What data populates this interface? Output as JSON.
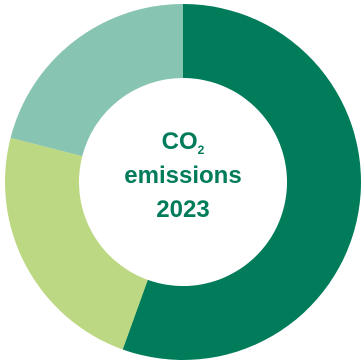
{
  "chart_data": {
    "type": "pie",
    "title_line1": "CO",
    "title_sub": "2",
    "title_line2": "emissions",
    "title_line3": "2023",
    "slices": [
      {
        "value": 55.5,
        "color": "#007c5a"
      },
      {
        "value": 23.5,
        "color": "#bcd882"
      },
      {
        "value": 21.0,
        "color": "#87c4b2"
      }
    ]
  }
}
